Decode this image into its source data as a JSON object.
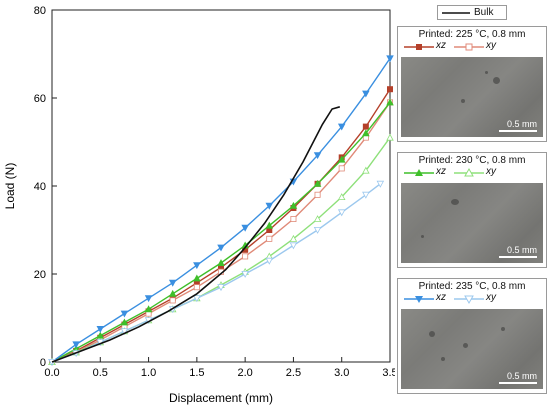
{
  "chart_data": {
    "type": "line",
    "xlabel": "Displacement (mm)",
    "ylabel": "Load (N)",
    "xlim": [
      0,
      3.5
    ],
    "ylim": [
      0,
      80
    ],
    "xticks": [
      "0.0",
      "0.5",
      "1.0",
      "1.5",
      "2.0",
      "2.5",
      "3.0",
      "3.5"
    ],
    "yticks": [
      "0",
      "20",
      "40",
      "60",
      "80"
    ],
    "grid": false,
    "bulk_legend": "Bulk",
    "series": [
      {
        "name": "Bulk",
        "group": "bulk",
        "color": "#111111",
        "marker": "none",
        "x": [
          0,
          0.3,
          0.6,
          0.9,
          1.2,
          1.5,
          1.8,
          2.0,
          2.2,
          2.4,
          2.6,
          2.8,
          2.9,
          2.98
        ],
        "y": [
          0,
          2.5,
          5,
          8,
          11.5,
          15.5,
          21,
          26,
          31.5,
          38,
          45.5,
          54,
          57.5,
          58
        ]
      },
      {
        "name": "xz",
        "group": "225",
        "color": "#b5402a",
        "marker": "square-filled",
        "x": [
          0,
          0.25,
          0.5,
          0.75,
          1.0,
          1.25,
          1.5,
          1.75,
          2.0,
          2.25,
          2.5,
          2.75,
          3.0,
          3.25,
          3.5
        ],
        "y": [
          0,
          2.5,
          5.5,
          8.5,
          11.5,
          14.5,
          18,
          21.5,
          25.5,
          30,
          35,
          40.5,
          46.5,
          53.5,
          62
        ]
      },
      {
        "name": "xy",
        "group": "225",
        "color": "#e08a78",
        "marker": "square-open",
        "x": [
          0,
          0.25,
          0.5,
          0.75,
          1.0,
          1.25,
          1.5,
          1.75,
          2.0,
          2.25,
          2.5,
          2.75,
          3.0,
          3.25,
          3.5
        ],
        "y": [
          0,
          2.3,
          5,
          8,
          11,
          14,
          17,
          20.5,
          24,
          28,
          32.5,
          38,
          44,
          51,
          59
        ]
      },
      {
        "name": "xz",
        "group": "230",
        "color": "#3fbf2a",
        "marker": "triangle-filled",
        "x": [
          0,
          0.25,
          0.5,
          0.75,
          1.0,
          1.25,
          1.5,
          1.75,
          2.0,
          2.25,
          2.5,
          2.75,
          3.0,
          3.25,
          3.5
        ],
        "y": [
          0,
          3,
          6,
          9,
          12,
          15.5,
          19,
          22.5,
          26.5,
          31,
          35.5,
          40.5,
          46,
          52,
          59
        ]
      },
      {
        "name": "xy",
        "group": "230",
        "color": "#8ee07a",
        "marker": "triangle-open",
        "x": [
          0,
          0.25,
          0.5,
          0.75,
          1.0,
          1.25,
          1.5,
          1.75,
          2.0,
          2.25,
          2.5,
          2.75,
          3.0,
          3.25,
          3.5
        ],
        "y": [
          0,
          2.2,
          4.5,
          7,
          9.5,
          12,
          14.5,
          17.5,
          20.5,
          24,
          28,
          32.5,
          37.5,
          43.5,
          51
        ]
      },
      {
        "name": "xz",
        "group": "235",
        "color": "#3a8fe0",
        "marker": "triangle-down-filled",
        "x": [
          0,
          0.25,
          0.5,
          0.75,
          1.0,
          1.25,
          1.5,
          1.75,
          2.0,
          2.25,
          2.5,
          2.75,
          3.0,
          3.25,
          3.5
        ],
        "y": [
          0,
          4,
          7.5,
          11,
          14.5,
          18,
          22,
          26,
          30.5,
          35.5,
          41,
          47,
          53.5,
          61,
          69
        ]
      },
      {
        "name": "xy",
        "group": "235",
        "color": "#9cc8ee",
        "marker": "triangle-down-open",
        "x": [
          0,
          0.25,
          0.5,
          0.75,
          1.0,
          1.25,
          1.5,
          1.75,
          2.0,
          2.25,
          2.5,
          2.75,
          3.0,
          3.25,
          3.4
        ],
        "y": [
          0,
          2,
          4.5,
          7,
          9.5,
          12,
          14.5,
          17,
          20,
          23,
          26.5,
          30,
          34,
          38,
          40.5
        ]
      }
    ]
  },
  "panels": [
    {
      "title": "Printed: 225 °C, 0.8 mm",
      "xz_label": "xz",
      "xy_label": "xy",
      "xz_color": "#b5402a",
      "xy_color": "#e08a78",
      "scale": "0.5 mm"
    },
    {
      "title": "Printed: 230 °C, 0.8 mm",
      "xz_label": "xz",
      "xy_label": "xy",
      "xz_color": "#3fbf2a",
      "xy_color": "#8ee07a",
      "scale": "0.5 mm"
    },
    {
      "title": "Printed: 235 °C, 0.8 mm",
      "xz_label": "xz",
      "xy_label": "xy",
      "xz_color": "#3a8fe0",
      "xy_color": "#9cc8ee",
      "scale": "0.5 mm"
    }
  ]
}
